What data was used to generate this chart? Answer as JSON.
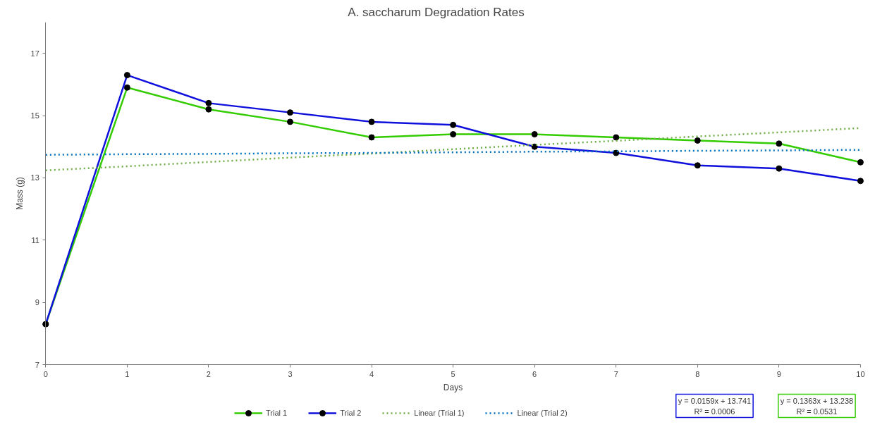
{
  "chart_data": {
    "type": "line",
    "title": "A. saccharum Degradation Rates",
    "xlabel": "Days",
    "ylabel": "Mass (g)",
    "x": [
      0,
      1,
      2,
      3,
      4,
      5,
      6,
      7,
      8,
      9,
      10
    ],
    "series": [
      {
        "name": "Trial 1",
        "color": "#33cc00",
        "marker": "circle",
        "values": [
          8.3,
          15.9,
          15.2,
          14.8,
          14.3,
          14.4,
          14.4,
          14.3,
          14.2,
          14.1,
          13.5
        ]
      },
      {
        "name": "Trial 2",
        "color": "#1010dd",
        "marker": "circle",
        "values": [
          8.3,
          16.3,
          15.4,
          15.1,
          14.8,
          14.7,
          14.0,
          13.8,
          13.4,
          13.3,
          12.9
        ]
      },
      {
        "name": "Linear (Trial 1)",
        "color": "#70ad47",
        "line_style": "dotted",
        "values": [
          13.24,
          13.37,
          13.51,
          13.65,
          13.78,
          13.92,
          14.06,
          14.19,
          14.33,
          14.46,
          14.6
        ]
      },
      {
        "name": "Linear (Trial 2)",
        "color": "#0070c0",
        "line_style": "dotted",
        "values": [
          13.74,
          13.76,
          13.77,
          13.79,
          13.8,
          13.82,
          13.84,
          13.85,
          13.87,
          13.88,
          13.9
        ]
      }
    ],
    "xlim": [
      0,
      10
    ],
    "xticks": [
      0,
      1,
      2,
      3,
      4,
      5,
      6,
      7,
      8,
      9,
      10
    ],
    "ylim": [
      7,
      18
    ],
    "yticks": [
      7,
      9,
      11,
      13,
      15,
      17
    ],
    "grid": false,
    "legend": "bottom",
    "annotations": [
      "y = 0.0159x + 13.741\nR² = 0.0006",
      "y = 0.1363x + 13.238\nR² = 0.0531"
    ]
  }
}
